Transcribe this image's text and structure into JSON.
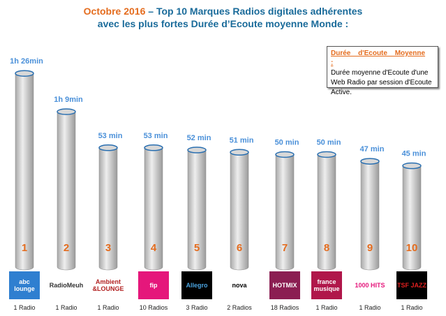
{
  "title": {
    "line1_highlight": "Octobre 2016",
    "line1_rest": " – Top 10 Marques Radios digitales adhérentes",
    "line2": "avec les plus fortes Durée d’Ecoute moyenne Monde :"
  },
  "legend_box": {
    "heading": "Durée d'Ecoute Moyenne :",
    "text": "Durée moyenne d'Ecoute d'une Web Radio par session d'Ecoute Active."
  },
  "colors": {
    "title": "#1a6b9a",
    "accent": "#e46c1e",
    "value_label": "#4a90d9",
    "cylinder": "#d9d9d9"
  },
  "chart_data": {
    "type": "bar",
    "categories": [
      "abc lounge",
      "Radio Meuh",
      "Ambient & Lounge",
      "fip",
      "Allegro",
      "nova",
      "Hotmix Radio",
      "france musique",
      "1000 Hits",
      "TSF Jazz"
    ],
    "values_minutes": [
      86,
      69,
      53,
      53,
      52,
      51,
      50,
      50,
      47,
      45
    ],
    "data_labels": [
      "1h 26min",
      "1h 9min",
      "53 min",
      "53 min",
      "52 min",
      "51 min",
      "50 min",
      "50 min",
      "47 min",
      "45 min"
    ],
    "ranks": [
      "1",
      "2",
      "3",
      "4",
      "5",
      "6",
      "7",
      "8",
      "9",
      "10"
    ],
    "radio_counts": [
      "1 Radio",
      "1 Radio",
      "1 Radio",
      "10 Radios",
      "3 Radio",
      "2 Radios",
      "18 Radios",
      "1 Radio",
      "1 Radio",
      "1 Radio"
    ],
    "logo_text": [
      "abc lounge",
      "RadioMeuh",
      "Ambient &LOUNGE",
      "fip",
      "Allegro",
      "nova",
      "HOTMIX",
      "france musique",
      "1000 HITS",
      "TSF JAZZ"
    ],
    "logo_colors": [
      "#2f7fd0",
      "#ffffff",
      "#ffffff",
      "#e5177b",
      "#000000",
      "#ffffff",
      "#8b1e52",
      "#b0174a",
      "#ffffff",
      "#000000"
    ],
    "logo_text_colors": [
      "#ffffff",
      "#333333",
      "#b22222",
      "#ffffff",
      "#4aa3df",
      "#000000",
      "#ffffff",
      "#ffffff",
      "#e5177b",
      "#e02020"
    ]
  }
}
